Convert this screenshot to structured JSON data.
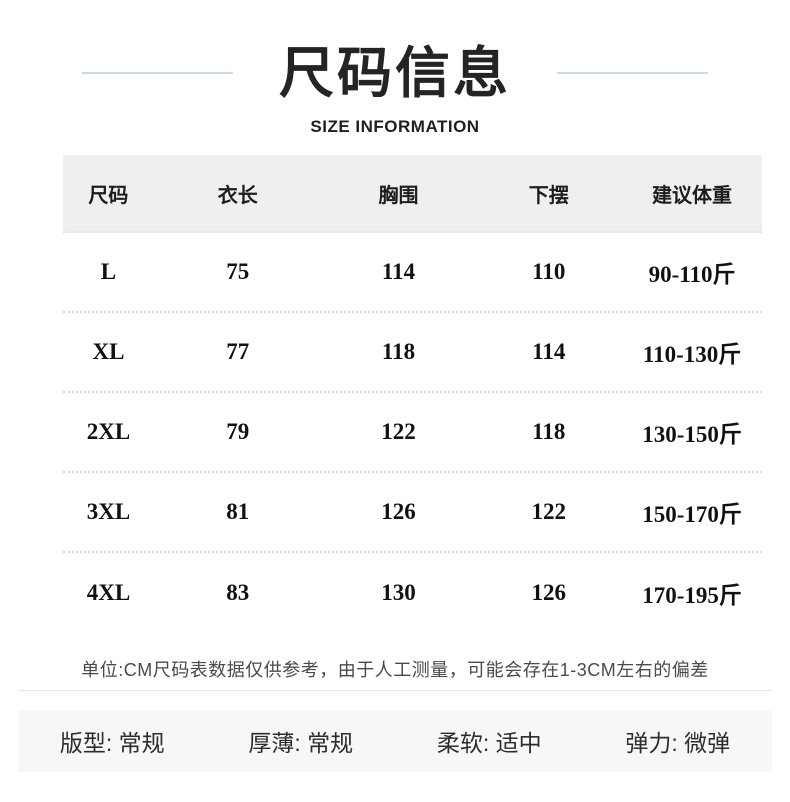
{
  "page": {
    "title": "尺码信息",
    "subtitle": "SIZE INFORMATION"
  },
  "table": {
    "headers": [
      "尺码",
      "衣长",
      "胸围",
      "下摆",
      "建议体重"
    ],
    "rows": [
      [
        "L",
        "75",
        "114",
        "110",
        "90-110斤"
      ],
      [
        "XL",
        "77",
        "118",
        "114",
        "110-130斤"
      ],
      [
        "2XL",
        "79",
        "122",
        "118",
        "130-150斤"
      ],
      [
        "3XL",
        "81",
        "126",
        "122",
        "150-170斤"
      ],
      [
        "4XL",
        "83",
        "130",
        "126",
        "170-195斤"
      ]
    ]
  },
  "note": "单位:CM尺码表数据仅供参考，由于人工测量，可能会存在1-3CM左右的偏差",
  "footer": {
    "items": [
      "版型: 常规",
      "厚薄: 常规",
      "柔软: 适中",
      "弹力: 微弹"
    ]
  },
  "colors": {
    "accent_line": "#ccdeda",
    "header_bg": "#efefef",
    "footer_bg": "#f7f7f7",
    "divider": "#e7e7e7",
    "dotted_separator": "#d9d9d9",
    "title_text": "#242424",
    "note_text": "#4a4a4a"
  }
}
